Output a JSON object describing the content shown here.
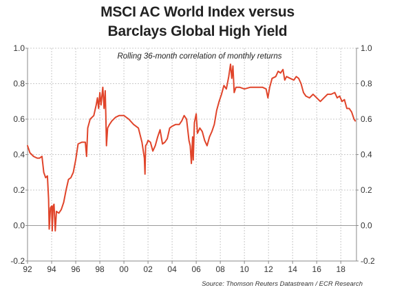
{
  "title_line1": "MSCI AC World Index versus",
  "title_line2": "Barclays Global High Yield",
  "source": "Source: Thomson Reuters Datastream / ECR Research",
  "colors": {
    "line": "#e0442a",
    "grid": "#c8c8c8",
    "axis": "#888888"
  },
  "chart_data": {
    "type": "line",
    "title": "MSCI AC World Index versus Barclays Global High Yield",
    "subtitle": "Rolling 36-month correlation of monthly returns",
    "xlabel": "",
    "ylabel": "",
    "x_tick_labels": [
      "92",
      "94",
      "96",
      "98",
      "00",
      "02",
      "04",
      "06",
      "08",
      "10",
      "12",
      "14",
      "16",
      "18"
    ],
    "x_ticks": [
      1992,
      1994,
      1996,
      1998,
      2000,
      2002,
      2004,
      2006,
      2008,
      2010,
      2012,
      2014,
      2016,
      2018
    ],
    "y_ticks": [
      -0.2,
      0.0,
      0.2,
      0.4,
      0.6,
      0.8,
      1.0
    ],
    "y_tick_labels": [
      "-0.2",
      "0.0",
      "0.2",
      "0.4",
      "0.6",
      "0.8",
      "1.0"
    ],
    "xlim": [
      1992,
      2019.3
    ],
    "ylim": [
      -0.2,
      1.0
    ],
    "grid": true,
    "right_axis": true,
    "series": [
      {
        "points": [
          [
            1992.0,
            0.45
          ],
          [
            1992.2,
            0.41
          ],
          [
            1992.5,
            0.39
          ],
          [
            1992.8,
            0.38
          ],
          [
            1993.0,
            0.38
          ],
          [
            1993.2,
            0.39
          ],
          [
            1993.35,
            0.3
          ],
          [
            1993.5,
            0.27
          ],
          [
            1993.65,
            0.28
          ],
          [
            1993.75,
            0.15
          ],
          [
            1993.8,
            -0.02
          ],
          [
            1993.9,
            0.1
          ],
          [
            1994.0,
            0.11
          ],
          [
            1994.05,
            -0.03
          ],
          [
            1994.12,
            0.11
          ],
          [
            1994.2,
            0.12
          ],
          [
            1994.3,
            -0.03
          ],
          [
            1994.4,
            0.08
          ],
          [
            1994.6,
            0.07
          ],
          [
            1994.8,
            0.09
          ],
          [
            1995.0,
            0.13
          ],
          [
            1995.2,
            0.2
          ],
          [
            1995.4,
            0.26
          ],
          [
            1995.6,
            0.27
          ],
          [
            1995.8,
            0.3
          ],
          [
            1996.0,
            0.37
          ],
          [
            1996.2,
            0.46
          ],
          [
            1996.5,
            0.47
          ],
          [
            1996.8,
            0.47
          ],
          [
            1996.9,
            0.39
          ],
          [
            1997.0,
            0.55
          ],
          [
            1997.2,
            0.6
          ],
          [
            1997.5,
            0.62
          ],
          [
            1997.7,
            0.68
          ],
          [
            1997.8,
            0.72
          ],
          [
            1997.9,
            0.66
          ],
          [
            1998.0,
            0.75
          ],
          [
            1998.1,
            0.68
          ],
          [
            1998.25,
            0.78
          ],
          [
            1998.35,
            0.66
          ],
          [
            1998.45,
            0.76
          ],
          [
            1998.5,
            0.62
          ],
          [
            1998.55,
            0.45
          ],
          [
            1998.65,
            0.55
          ],
          [
            1998.8,
            0.57
          ],
          [
            1999.0,
            0.59
          ],
          [
            1999.3,
            0.61
          ],
          [
            1999.6,
            0.62
          ],
          [
            2000.0,
            0.62
          ],
          [
            2000.4,
            0.6
          ],
          [
            2000.8,
            0.57
          ],
          [
            2001.2,
            0.55
          ],
          [
            2001.5,
            0.47
          ],
          [
            2001.7,
            0.38
          ],
          [
            2001.75,
            0.29
          ],
          [
            2001.8,
            0.45
          ],
          [
            2001.9,
            0.46
          ],
          [
            2002.0,
            0.48
          ],
          [
            2002.2,
            0.47
          ],
          [
            2002.4,
            0.42
          ],
          [
            2002.6,
            0.45
          ],
          [
            2002.8,
            0.5
          ],
          [
            2003.0,
            0.54
          ],
          [
            2003.2,
            0.46
          ],
          [
            2003.4,
            0.47
          ],
          [
            2003.6,
            0.49
          ],
          [
            2003.8,
            0.55
          ],
          [
            2004.0,
            0.56
          ],
          [
            2004.3,
            0.57
          ],
          [
            2004.6,
            0.57
          ],
          [
            2004.8,
            0.59
          ],
          [
            2005.0,
            0.62
          ],
          [
            2005.2,
            0.6
          ],
          [
            2005.4,
            0.48
          ],
          [
            2005.5,
            0.45
          ],
          [
            2005.6,
            0.35
          ],
          [
            2005.7,
            0.5
          ],
          [
            2005.75,
            0.37
          ],
          [
            2005.85,
            0.58
          ],
          [
            2006.0,
            0.63
          ],
          [
            2006.1,
            0.52
          ],
          [
            2006.3,
            0.55
          ],
          [
            2006.5,
            0.53
          ],
          [
            2006.7,
            0.48
          ],
          [
            2006.9,
            0.45
          ],
          [
            2007.1,
            0.5
          ],
          [
            2007.3,
            0.53
          ],
          [
            2007.5,
            0.57
          ],
          [
            2007.7,
            0.65
          ],
          [
            2007.9,
            0.7
          ],
          [
            2008.1,
            0.74
          ],
          [
            2008.3,
            0.79
          ],
          [
            2008.5,
            0.77
          ],
          [
            2008.7,
            0.84
          ],
          [
            2008.85,
            0.91
          ],
          [
            2008.95,
            0.83
          ],
          [
            2009.05,
            0.9
          ],
          [
            2009.15,
            0.75
          ],
          [
            2009.3,
            0.78
          ],
          [
            2009.6,
            0.78
          ],
          [
            2010.0,
            0.77
          ],
          [
            2010.5,
            0.78
          ],
          [
            2011.0,
            0.78
          ],
          [
            2011.5,
            0.78
          ],
          [
            2011.8,
            0.77
          ],
          [
            2011.95,
            0.72
          ],
          [
            2012.1,
            0.78
          ],
          [
            2012.3,
            0.83
          ],
          [
            2012.6,
            0.84
          ],
          [
            2012.8,
            0.87
          ],
          [
            2013.0,
            0.86
          ],
          [
            2013.2,
            0.88
          ],
          [
            2013.35,
            0.82
          ],
          [
            2013.5,
            0.84
          ],
          [
            2013.8,
            0.83
          ],
          [
            2014.1,
            0.82
          ],
          [
            2014.3,
            0.84
          ],
          [
            2014.5,
            0.83
          ],
          [
            2014.7,
            0.8
          ],
          [
            2014.9,
            0.75
          ],
          [
            2015.1,
            0.73
          ],
          [
            2015.4,
            0.72
          ],
          [
            2015.7,
            0.74
          ],
          [
            2016.0,
            0.72
          ],
          [
            2016.3,
            0.7
          ],
          [
            2016.6,
            0.72
          ],
          [
            2016.9,
            0.74
          ],
          [
            2017.2,
            0.74
          ],
          [
            2017.5,
            0.75
          ],
          [
            2017.7,
            0.72
          ],
          [
            2017.9,
            0.73
          ],
          [
            2018.1,
            0.7
          ],
          [
            2018.3,
            0.71
          ],
          [
            2018.5,
            0.66
          ],
          [
            2018.7,
            0.66
          ],
          [
            2018.9,
            0.64
          ],
          [
            2019.1,
            0.6
          ],
          [
            2019.2,
            0.59
          ]
        ]
      }
    ]
  }
}
